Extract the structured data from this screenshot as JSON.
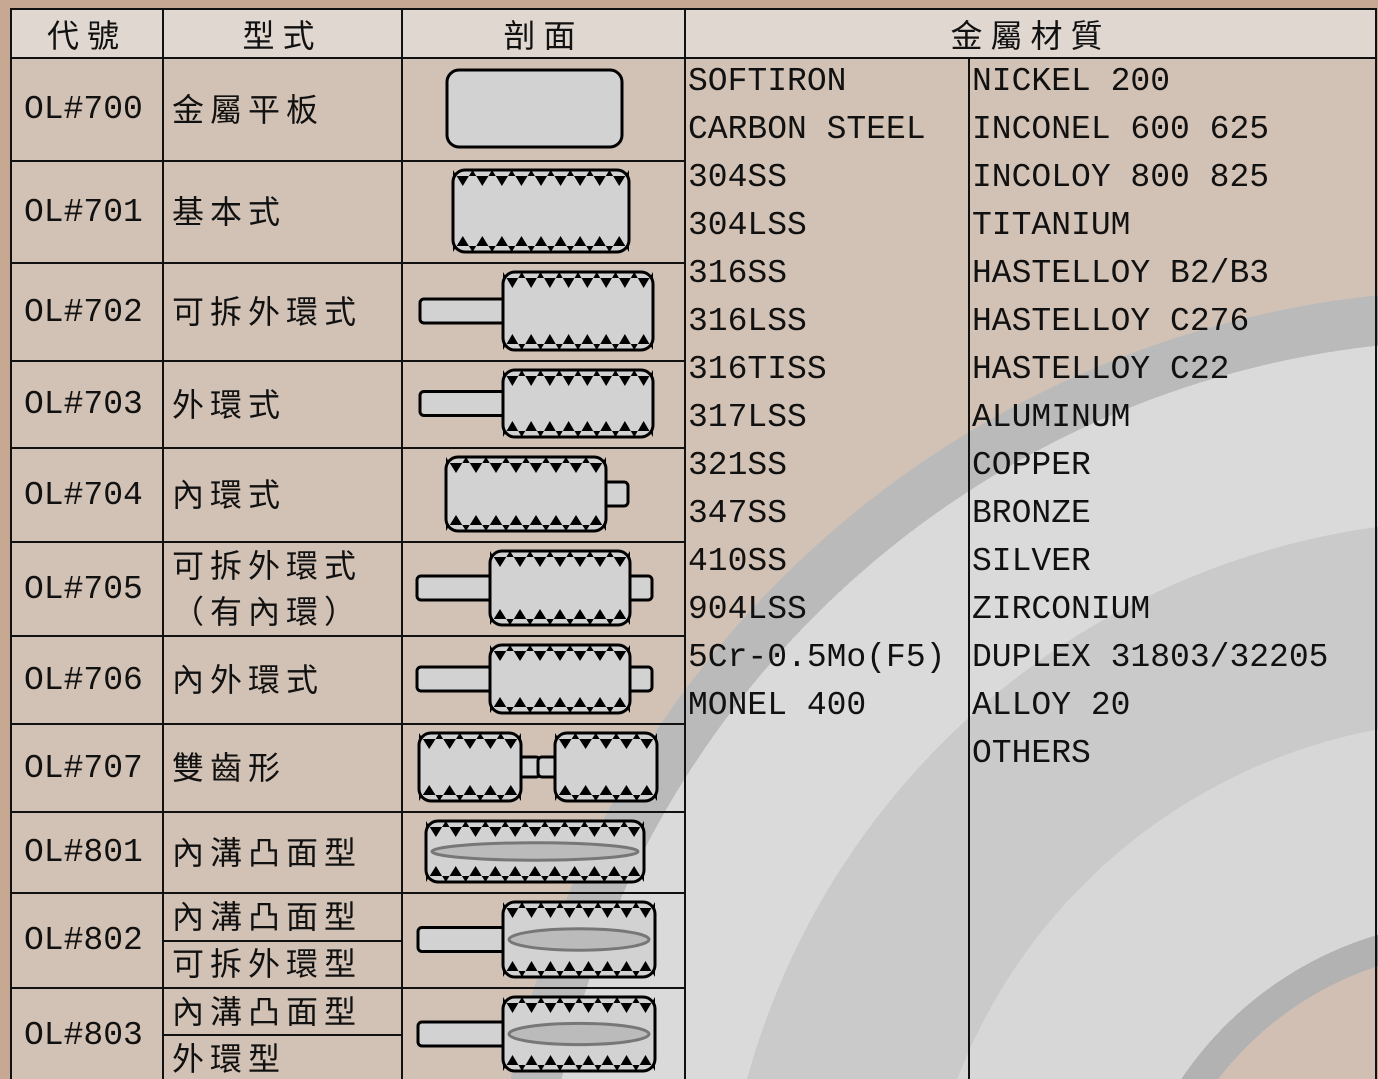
{
  "header": {
    "columns": [
      "代號",
      "型式",
      "剖面",
      "金屬材質"
    ]
  },
  "rows": [
    {
      "code": "OL#700",
      "type": [
        "金屬平板"
      ]
    },
    {
      "code": "OL#701",
      "type": [
        "基本式"
      ]
    },
    {
      "code": "OL#702",
      "type": [
        "可拆外環式"
      ]
    },
    {
      "code": "OL#703",
      "type": [
        "外環式"
      ]
    },
    {
      "code": "OL#704",
      "type": [
        "內環式"
      ]
    },
    {
      "code": "OL#705",
      "type": [
        [
          "可拆外環式",
          "（有內環）"
        ]
      ]
    },
    {
      "code": "OL#706",
      "type": [
        "內外環式"
      ]
    },
    {
      "code": "OL#707",
      "type": [
        "雙齒形"
      ]
    },
    {
      "code": "OL#801",
      "type": [
        "內溝凸面型"
      ]
    },
    {
      "code": "OL#802",
      "type": [
        "內溝凸面型",
        "可拆外環型"
      ]
    },
    {
      "code": "OL#803",
      "type": [
        "內溝凸面型",
        "外環型"
      ]
    }
  ],
  "materials": {
    "left": [
      "SOFTIRON",
      "CARBON STEEL",
      "304SS",
      "304LSS",
      "316SS",
      "316LSS",
      "316TISS",
      "317LSS",
      "321SS",
      "347SS",
      "410SS",
      "904LSS",
      "5Cr-0.5Mo(F5)",
      "MONEL 400"
    ],
    "right": [
      "NICKEL 200",
      "INCONEL 600 625",
      "INCOLOY 800 825",
      "TITANIUM",
      "HASTELLOY B2/B3",
      "HASTELLOY C276",
      "HASTELLOY C22",
      "ALUMINUM",
      "COPPER",
      "BRONZE",
      "SILVER",
      "ZIRCONIUM",
      "DUPLEX 31803/32205",
      "ALLOY 20",
      "OTHERS"
    ]
  }
}
